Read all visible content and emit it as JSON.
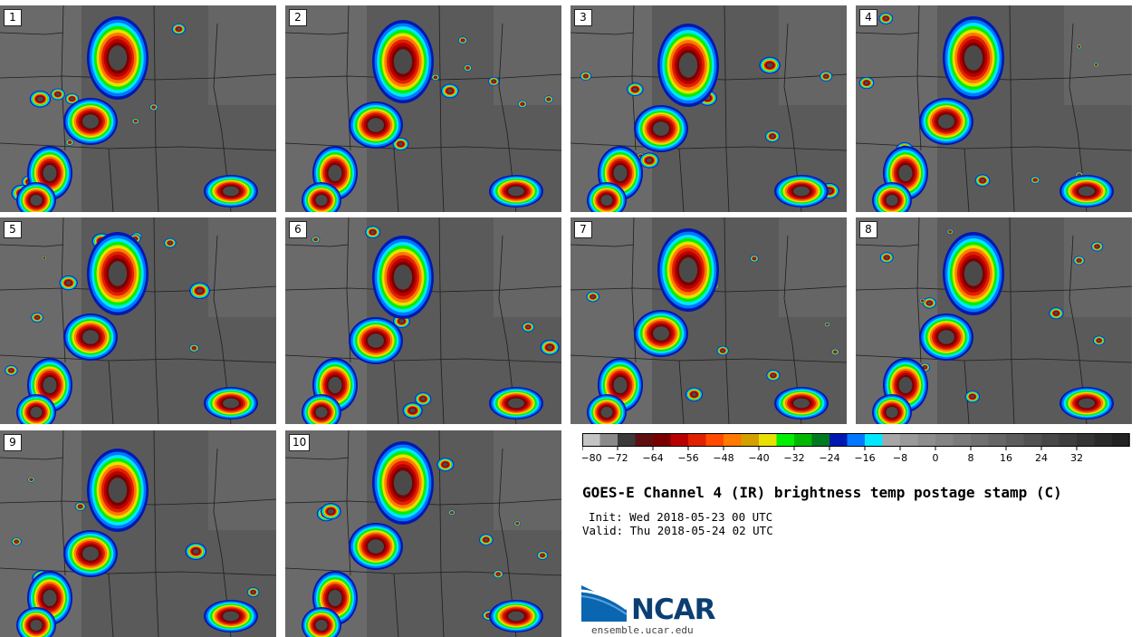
{
  "panels": [
    {
      "label": "1"
    },
    {
      "label": "2"
    },
    {
      "label": "3"
    },
    {
      "label": "4"
    },
    {
      "label": "5"
    },
    {
      "label": "6"
    },
    {
      "label": "7"
    },
    {
      "label": "8"
    },
    {
      "label": "9"
    },
    {
      "label": "10"
    }
  ],
  "colorbar": {
    "tick_labels": [
      "−80",
      "−72",
      "−64",
      "−56",
      "−48",
      "−40",
      "−32",
      "−24",
      "−16",
      "−8",
      "0",
      "8",
      "16",
      "24",
      "32"
    ],
    "colors": [
      "#c4c4c4",
      "#8a8a8a",
      "#3a3a3a",
      "#5e1010",
      "#7a0000",
      "#b80000",
      "#e02000",
      "#ff4a00",
      "#ff7a00",
      "#d4a000",
      "#e8e000",
      "#00f000",
      "#00b800",
      "#007a20",
      "#0018b0",
      "#0078ff",
      "#00e8ff",
      "#a6a6a6",
      "#9a9a9a",
      "#8e8e8e",
      "#848484",
      "#7a7a7a",
      "#707070",
      "#666666",
      "#5c5c5c",
      "#525252",
      "#484848",
      "#3e3e3e",
      "#343434",
      "#2a2a2a",
      "#222222"
    ]
  },
  "title": "GOES-E Channel 4 (IR) brightness temp postage stamp (C)",
  "init": "Init: Wed 2018-05-23 00 UTC",
  "valid": "Valid: Thu 2018-05-24 02 UTC",
  "logo": {
    "text": "NCAR",
    "url": "ensemble.ucar.edu"
  }
}
